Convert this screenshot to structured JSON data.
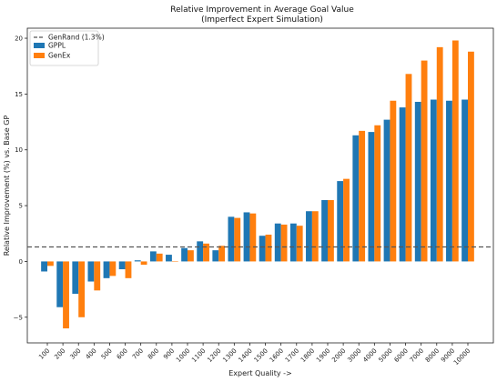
{
  "chart_data": {
    "type": "bar",
    "title": "Relative Improvement in Average Goal Value",
    "subtitle": "(Imperfect Expert Simulation)",
    "xlabel": "Expert Quality ->",
    "ylabel": "Relative Improvement (%) vs. Base GP",
    "ylim": [
      -7.3,
      20.9
    ],
    "yticks": [
      -5,
      0,
      5,
      10,
      15,
      20
    ],
    "ytick_labels": [
      "−5",
      "0",
      "5",
      "10",
      "15",
      "20"
    ],
    "grid": false,
    "legend_position": "top-left",
    "categories": [
      "100",
      "200",
      "300",
      "400",
      "500",
      "600",
      "700",
      "800",
      "900",
      "1000",
      "1100",
      "1200",
      "1300",
      "1400",
      "1500",
      "1600",
      "1700",
      "1800",
      "1900",
      "2000",
      "3000",
      "4000",
      "5000",
      "6000",
      "7000",
      "8000",
      "9000",
      "10000"
    ],
    "series": [
      {
        "name": "GPPL",
        "color": "#1f77b4",
        "values": [
          -0.9,
          -4.1,
          -2.9,
          -1.8,
          -1.5,
          -0.7,
          0.1,
          0.9,
          0.6,
          1.2,
          1.8,
          1.0,
          4.0,
          4.4,
          2.3,
          3.4,
          3.4,
          4.5,
          5.5,
          7.2,
          11.3,
          11.6,
          12.7,
          13.8,
          14.3,
          14.5,
          14.4,
          14.5
        ]
      },
      {
        "name": "GenEx",
        "color": "#ff7f0e",
        "values": [
          -0.4,
          -6.0,
          -5.0,
          -2.6,
          -1.3,
          -1.5,
          -0.3,
          0.7,
          0.0,
          1.0,
          1.6,
          1.4,
          3.9,
          4.3,
          2.4,
          3.3,
          3.2,
          4.5,
          5.5,
          7.4,
          11.7,
          12.2,
          14.4,
          16.8,
          18.0,
          19.2,
          19.8,
          18.8
        ]
      }
    ],
    "reference_line": {
      "name": "GenRand (1.3%)",
      "value": 1.3,
      "color": "#555555",
      "style": "dashed"
    }
  }
}
